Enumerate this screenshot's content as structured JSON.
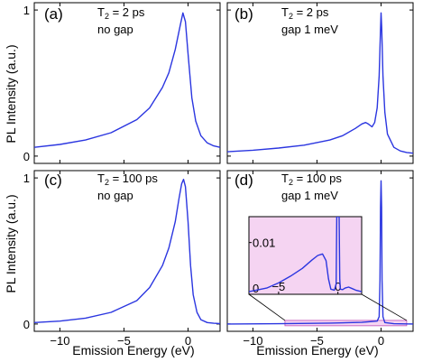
{
  "figure": {
    "ylabel": "PL Intensity (a.u.)",
    "xlabel": "Emission Energy (eV)",
    "x_ticks": [
      "-10",
      "-5",
      "0"
    ],
    "y_ticks_top": [
      "0",
      "1"
    ],
    "y_ticks_bottom": [
      "0",
      "1"
    ]
  },
  "panels": [
    {
      "label": "(a)",
      "line1": "T2 = 2 ps",
      "line2": "no gap"
    },
    {
      "label": "(b)",
      "line1": "T2 = 2 ps",
      "line2": "gap 1 meV"
    },
    {
      "label": "(c)",
      "line1": "T2 = 100 ps",
      "line2": "no gap"
    },
    {
      "label": "(d)",
      "line1": "T2 = 100 ps",
      "line2": "gap 1 meV"
    }
  ],
  "inset": {
    "y_ticks": [
      "0",
      "0.01"
    ],
    "x_ticks": [
      "-5",
      "0"
    ],
    "highlight_color": "#f5d4f2",
    "highlight_border": "#c04fb8"
  },
  "colors": {
    "line": "#2b36e0"
  },
  "chart_data": [
    {
      "type": "line",
      "panel": "(a)",
      "xlabel": "",
      "ylabel": "PL Intensity (a.u.)",
      "xlim": [
        -12,
        2.5
      ],
      "ylim": [
        -0.05,
        1.05
      ],
      "x": [
        -12,
        -10,
        -8,
        -6,
        -4,
        -3,
        -2,
        -1.5,
        -1,
        -0.6,
        -0.4,
        -0.2,
        0,
        0.3,
        0.6,
        1,
        1.5,
        2,
        2.5
      ],
      "y": [
        0.06,
        0.08,
        0.11,
        0.16,
        0.25,
        0.33,
        0.47,
        0.57,
        0.73,
        0.9,
        0.98,
        0.92,
        0.7,
        0.4,
        0.24,
        0.14,
        0.09,
        0.07,
        0.06
      ]
    },
    {
      "type": "line",
      "panel": "(b)",
      "xlabel": "",
      "ylabel": "",
      "xlim": [
        -12,
        2.5
      ],
      "ylim": [
        -0.05,
        1.05
      ],
      "x": [
        -12,
        -10,
        -8,
        -6,
        -4,
        -3,
        -2,
        -1.5,
        -1.2,
        -1,
        -0.7,
        -0.5,
        -0.3,
        -0.15,
        -0.05,
        0,
        0.05,
        0.15,
        0.3,
        0.5,
        1,
        1.5,
        2,
        2.5
      ],
      "y": [
        0.03,
        0.04,
        0.055,
        0.075,
        0.11,
        0.14,
        0.19,
        0.22,
        0.23,
        0.22,
        0.2,
        0.23,
        0.33,
        0.55,
        0.85,
        0.98,
        0.88,
        0.55,
        0.3,
        0.15,
        0.06,
        0.035,
        0.025,
        0.02
      ]
    },
    {
      "type": "line",
      "panel": "(c)",
      "xlabel": "Emission Energy (eV)",
      "ylabel": "PL Intensity (a.u.)",
      "xlim": [
        -12,
        2.5
      ],
      "ylim": [
        -0.05,
        1.05
      ],
      "x": [
        -12,
        -10,
        -8,
        -6,
        -4,
        -3,
        -2,
        -1.5,
        -1,
        -0.7,
        -0.5,
        -0.35,
        -0.2,
        0,
        0.2,
        0.4,
        0.7,
        1,
        1.5,
        2,
        2.5
      ],
      "y": [
        0.01,
        0.02,
        0.04,
        0.08,
        0.16,
        0.25,
        0.4,
        0.52,
        0.7,
        0.86,
        0.96,
        0.99,
        0.94,
        0.7,
        0.4,
        0.2,
        0.08,
        0.03,
        0.01,
        0.005,
        0.003
      ]
    },
    {
      "type": "line",
      "panel": "(d)",
      "xlabel": "Emission Energy (eV)",
      "ylabel": "",
      "xlim": [
        -12,
        2.5
      ],
      "ylim": [
        -0.05,
        1.05
      ],
      "x": [
        -12,
        -8,
        -4,
        -1.5,
        -0.3,
        -0.15,
        -0.08,
        -0.04,
        0,
        0.04,
        0.08,
        0.15,
        0.3,
        1,
        2.5
      ],
      "y": [
        0.0,
        0.002,
        0.006,
        0.011,
        0.02,
        0.05,
        0.3,
        0.8,
        0.98,
        0.8,
        0.3,
        0.05,
        0.01,
        0.002,
        0.0
      ]
    },
    {
      "type": "line",
      "panel": "(d) inset",
      "xlim": [
        -7.5,
        2
      ],
      "ylim": [
        0,
        0.015
      ],
      "x": [
        -7.5,
        -6,
        -5,
        -4,
        -3,
        -2.2,
        -1.7,
        -1.3,
        -1.0,
        -0.8,
        -0.6,
        -0.3,
        -0.15,
        -0.1,
        -0.05,
        0.05,
        0.1,
        0.15,
        0.2,
        0.4,
        0.6,
        0.9,
        1.2,
        1.5,
        2
      ],
      "y": [
        0.0005,
        0.0012,
        0.0022,
        0.0035,
        0.005,
        0.0066,
        0.0075,
        0.0078,
        0.0065,
        0.003,
        0.001,
        0.0008,
        0.002,
        0.015,
        0.015,
        0.015,
        0.015,
        0.003,
        0.001,
        0.0009,
        0.0012,
        0.0014,
        0.0011,
        0.0008,
        0.0005
      ]
    }
  ]
}
